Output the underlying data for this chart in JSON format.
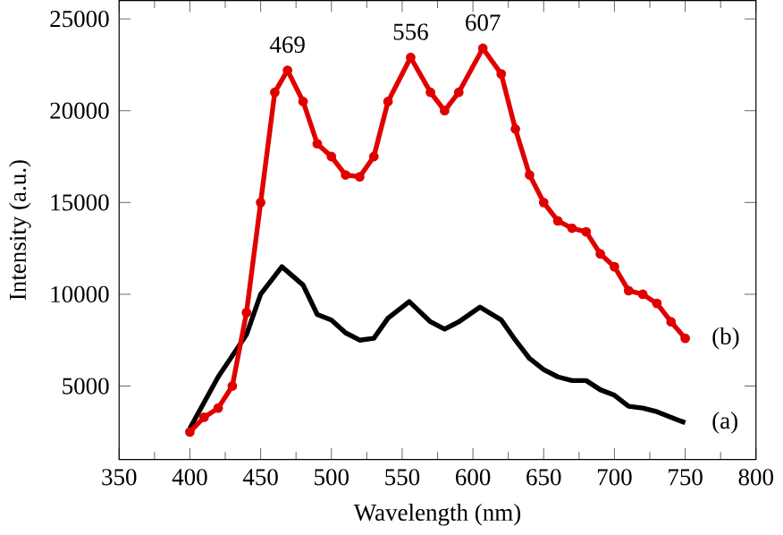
{
  "chart_data": {
    "type": "line",
    "xlabel": "Wavelength (nm)",
    "ylabel": "Intensity (a.u.)",
    "xlim": [
      350,
      800
    ],
    "xticks": [
      350,
      400,
      450,
      500,
      550,
      600,
      650,
      700,
      750,
      800
    ],
    "ylim": [
      1000,
      26000
    ],
    "yticks": [
      5000,
      10000,
      15000,
      20000,
      25000
    ],
    "legend": "right",
    "grid": false,
    "series": [
      {
        "name": "(a)",
        "color": "#000000",
        "marker": "none",
        "x": [
          400,
          420,
          440,
          450,
          465,
          480,
          490,
          500,
          510,
          520,
          530,
          540,
          555,
          570,
          580,
          590,
          605,
          620,
          630,
          640,
          650,
          660,
          670,
          680,
          690,
          700,
          710,
          720,
          730,
          740,
          750
        ],
        "values": [
          2700,
          5500,
          7800,
          10000,
          11500,
          10500,
          8900,
          8600,
          7900,
          7500,
          7600,
          8700,
          9600,
          8500,
          8100,
          8500,
          9300,
          8600,
          7500,
          6500,
          5900,
          5500,
          5300,
          5300,
          4800,
          4500,
          3900,
          3800,
          3600,
          3300,
          3000
        ]
      },
      {
        "name": "(b)",
        "color": "#e00000",
        "marker": "circle",
        "x": [
          400,
          410,
          420,
          430,
          440,
          450,
          460,
          469,
          480,
          490,
          500,
          510,
          520,
          530,
          540,
          556,
          570,
          580,
          590,
          607,
          620,
          630,
          640,
          650,
          660,
          670,
          680,
          690,
          700,
          710,
          720,
          730,
          740,
          750
        ],
        "values": [
          2500,
          3300,
          3800,
          5000,
          9000,
          15000,
          21000,
          22200,
          20500,
          18200,
          17500,
          16500,
          16400,
          17500,
          20500,
          22900,
          21000,
          20000,
          21000,
          23400,
          22000,
          19000,
          16500,
          15000,
          14000,
          13600,
          13400,
          12200,
          11500,
          10200,
          10000,
          9500,
          8500,
          7600
        ]
      }
    ],
    "annotations": [
      {
        "text": "469",
        "x": 469,
        "y": 22200
      },
      {
        "text": "556",
        "x": 556,
        "y": 22900
      },
      {
        "text": "607",
        "x": 607,
        "y": 23400
      }
    ]
  }
}
